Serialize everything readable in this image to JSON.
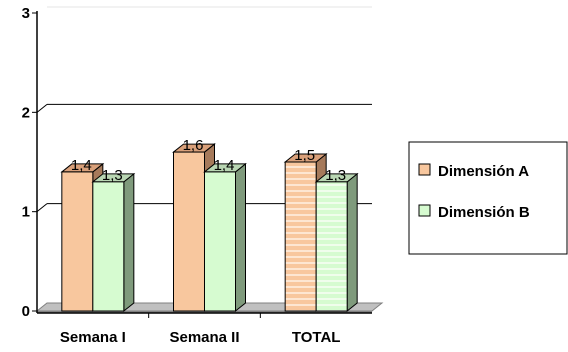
{
  "chart_data": {
    "type": "bar",
    "categories": [
      "Semana I",
      "Semana II",
      "TOTAL"
    ],
    "series": [
      {
        "name": "Dimensión A",
        "values": [
          1.4,
          1.6,
          1.5
        ],
        "color": "#f8c79e",
        "side": "#a67a5b",
        "top": "#d9a07a"
      },
      {
        "name": "Dimensión B",
        "values": [
          1.3,
          1.4,
          1.3
        ],
        "color": "#d6fbd0",
        "side": "#7f9a7c",
        "top": "#b9d6b3"
      }
    ],
    "data_labels": [
      [
        "1,4",
        "1,6",
        "1,5"
      ],
      [
        "1,3",
        "1,4",
        "1,3"
      ]
    ],
    "y_ticks": [
      "0",
      "1",
      "2",
      "3"
    ],
    "ylim": [
      0,
      3
    ],
    "grid": true,
    "legend_position": "right",
    "three_d": true
  }
}
